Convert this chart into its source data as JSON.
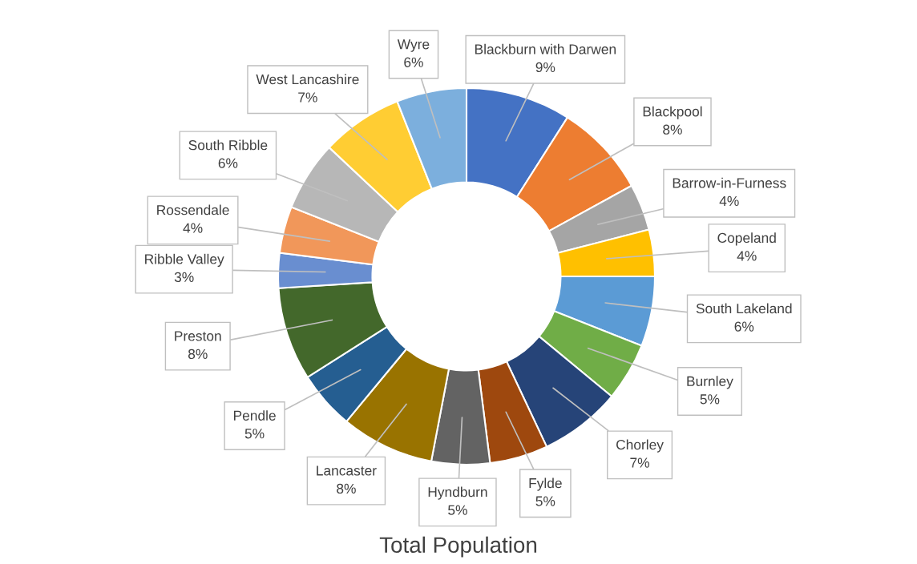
{
  "chart_data": {
    "type": "donut",
    "title": "Total Population",
    "categories": [
      "Blackburn with Darwen",
      "Blackpool",
      "Barrow-in-Furness",
      "Copeland",
      "South Lakeland",
      "Burnley",
      "Chorley",
      "Fylde",
      "Hyndburn",
      "Lancaster",
      "Pendle",
      "Preston",
      "Ribble Valley",
      "Rossendale",
      "South Ribble",
      "West Lancashire",
      "Wyre"
    ],
    "values": [
      9,
      8,
      4,
      4,
      6,
      5,
      7,
      5,
      5,
      8,
      5,
      8,
      3,
      4,
      6,
      7,
      6
    ],
    "value_labels": [
      "9%",
      "8%",
      "4%",
      "4%",
      "6%",
      "5%",
      "7%",
      "5%",
      "5%",
      "8%",
      "5%",
      "8%",
      "3%",
      "4%",
      "6%",
      "7%",
      "6%"
    ],
    "colors": [
      "#4472c4",
      "#ed7d31",
      "#a5a5a5",
      "#ffc000",
      "#5b9bd5",
      "#70ad47",
      "#264478",
      "#9e480e",
      "#636363",
      "#997300",
      "#255e91",
      "#43682b",
      "#698ed0",
      "#f1975a",
      "#b7b7b7",
      "#ffcd33",
      "#7cafdd"
    ],
    "legend": false
  }
}
